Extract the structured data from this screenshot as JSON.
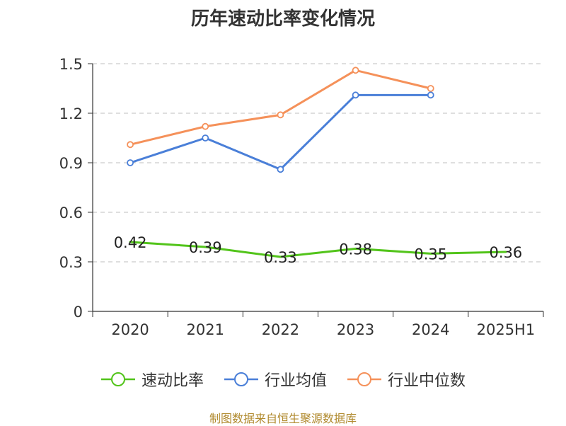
{
  "title": "历年速动比率变化情况",
  "source": "制图数据来自恒生聚源数据库",
  "chart_data": {
    "type": "line",
    "title": "历年速动比率变化情况",
    "categories": [
      "2020",
      "2021",
      "2022",
      "2023",
      "2024",
      "2025H1"
    ],
    "ylim": [
      0,
      1.5
    ],
    "yticks": [
      "0",
      "0.3",
      "0.6",
      "0.9",
      "1.2",
      "1.5"
    ],
    "grid": true,
    "legend_position": "bottom",
    "series": [
      {
        "name": "速动比率",
        "color": "#52c41a",
        "values": [
          0.42,
          0.39,
          0.33,
          0.38,
          0.35,
          0.36
        ],
        "labels": [
          "0.42",
          "0.39",
          "0.33",
          "0.38",
          "0.35",
          "0.36"
        ],
        "show_markers": false,
        "show_labels": true
      },
      {
        "name": "行业均值",
        "color": "#4a7fd8",
        "values": [
          0.9,
          1.05,
          0.86,
          1.31,
          1.31,
          null
        ],
        "show_markers": true,
        "show_labels": false
      },
      {
        "name": "行业中位数",
        "color": "#f5915a",
        "values": [
          1.01,
          1.12,
          1.19,
          1.46,
          1.35,
          null
        ],
        "show_markers": true,
        "show_labels": false
      }
    ]
  }
}
